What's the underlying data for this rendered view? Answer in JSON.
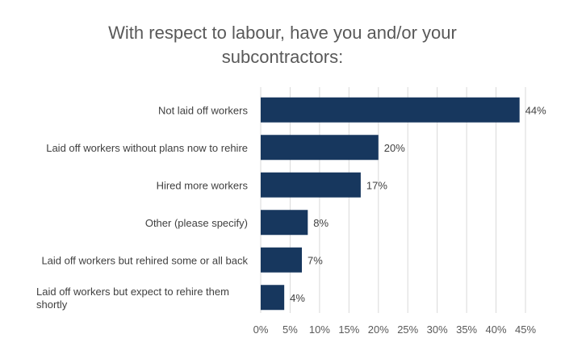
{
  "colors": {
    "bar": "#17375e",
    "grid": "#d9d9d9",
    "title": "#595959",
    "text": "#3f3f3f"
  },
  "chart_data": {
    "type": "bar",
    "orientation": "horizontal",
    "title": "With respect to labour, have you and/or your subcontractors:",
    "xlabel": "",
    "ylabel": "",
    "xlim": [
      0,
      45
    ],
    "xticks": [
      "0%",
      "5%",
      "10%",
      "15%",
      "20%",
      "25%",
      "30%",
      "35%",
      "40%",
      "45%"
    ],
    "grid": true,
    "legend": "none",
    "categories": [
      "Not laid off workers",
      "Laid off workers without plans now to rehire",
      "Hired more workers",
      "Other (please specify)",
      "Laid off workers but rehired some or all back",
      "Laid off workers but expect to rehire them shortly"
    ],
    "values": [
      44,
      20,
      17,
      8,
      7,
      4
    ],
    "data_labels": [
      "44%",
      "20%",
      "17%",
      "8%",
      "7%",
      "4%"
    ]
  }
}
